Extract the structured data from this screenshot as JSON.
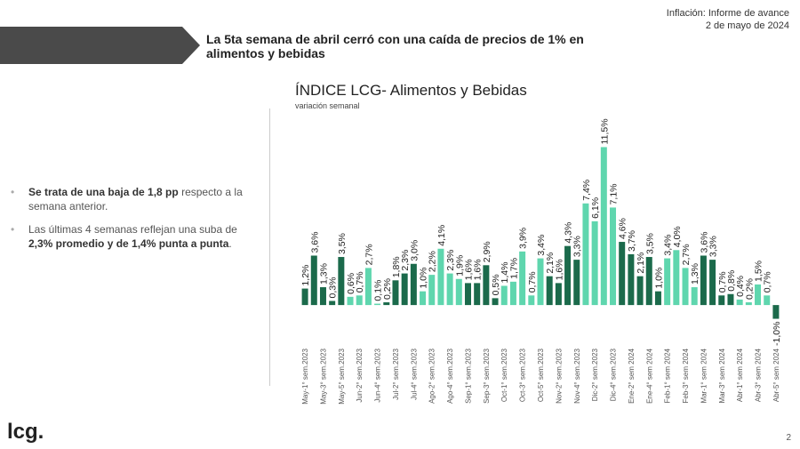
{
  "header": {
    "report": "Inflación: Informe de avance",
    "date": "2 de mayo de 2024"
  },
  "headline": "La 5ta semana de abril cerró con una caída de precios de 1% en alimentos y bebidas",
  "bullets": [
    [
      {
        "text": "Se trata de una baja de 1,8 pp",
        "bold": true
      },
      {
        "text": " respecto a la semana anterior.",
        "bold": false
      }
    ],
    [
      {
        "text": "Las últimas 4 semanas reflejan una suba de ",
        "bold": false
      },
      {
        "text": "2,3% promedio y  de 1,4% punta a punta",
        "bold": true
      },
      {
        "text": ".",
        "bold": false
      }
    ]
  ],
  "logo": "lcg.",
  "page_number": "2",
  "chart_data": {
    "type": "bar",
    "title": "ÍNDICE LCG- Alimentos y Bebidas",
    "subtitle": "variación semanal",
    "categories": [
      "May-1° sem.2023",
      null,
      "May-3° sem.2023",
      null,
      "May-5° sem.2023",
      null,
      "Jun-2° sem.2023",
      null,
      "Jun-4° sem.2023",
      null,
      "Jul-2° sem.2023",
      null,
      "Jul-4° sem.2023",
      null,
      "Ago-2° sem.2023",
      null,
      "Ago-4° sem.2023",
      null,
      "Sep-1° sem.2023",
      null,
      "Sep-3° sem.2023",
      null,
      "Oct-1° sem.2023",
      null,
      "Oct-3° sem.2023",
      null,
      "Oct-5° sem.2023",
      null,
      "Nov-2° sem.2023",
      null,
      "Nov-4° sem.2023",
      null,
      "Dic-2° sem.2023",
      null,
      "Dic-4° sem.2023",
      null,
      "Ene-2° sem 2024",
      null,
      "Ene-4° sem 2024",
      null,
      "Feb-1° sem 2024",
      null,
      "Feb-3° sem 2024",
      null,
      "Mar-1° sem 2024",
      null,
      "Mar-3° sem 2024",
      null,
      "Abr-1° sem 2024",
      null,
      "Abr-3° sem 2024",
      null,
      "Abr-5° sem 2024"
    ],
    "series": [
      {
        "values": [
          1.2,
          3.6,
          1.3,
          0.3,
          3.5,
          0.6,
          0.7,
          2.7,
          0.1,
          0.2,
          1.8,
          2.3,
          3.0,
          1.0,
          2.2,
          4.1,
          2.3,
          1.9,
          1.6,
          1.6,
          2.9,
          0.5,
          1.4,
          1.7,
          3.9,
          0.7,
          3.4,
          2.1,
          1.6,
          4.3,
          3.3,
          7.4,
          6.1,
          11.5,
          7.1,
          4.6,
          3.7,
          2.1,
          3.5,
          1.0,
          3.4,
          4.0,
          2.7,
          1.3,
          3.6,
          3.3,
          0.7,
          0.8,
          0.4,
          0.2,
          1.5,
          0.7,
          -1.0
        ],
        "value_labels": [
          "1,2%",
          "3,6%",
          "1,3%",
          "0,3%",
          "3,5%",
          "0,6%",
          "0,7%",
          "2,7%",
          "0,1%",
          "0,2%",
          "1,8%",
          "2,3%",
          "3,0%",
          "1,0%",
          "2,2%",
          "4,1%",
          "2,3%",
          "1,9%",
          "1,6%",
          "1,6%",
          "2,9%",
          "0,5%",
          "1,4%",
          "1,7%",
          "3,9%",
          "0,7%",
          "3,4%",
          "2,1%",
          "1,6%",
          "4,3%",
          "3,3%",
          "7,4%",
          "6,1%",
          "11,5%",
          "7,1%",
          "4,6%",
          "3,7%",
          "2,1%",
          "3,5%",
          "1,0%",
          "3,4%",
          "4,0%",
          "2,7%",
          "1,3%",
          "3,6%",
          "3,3%",
          "0,7%",
          "0,8%",
          "0,4%",
          "0,2%",
          "1,5%",
          "0,7%",
          "-1,0%"
        ],
        "colors": [
          "#1b6a4b",
          "#1b6a4b",
          "#1b6a4b",
          "#1b6a4b",
          "#1b6a4b",
          "#5fd6ae",
          "#5fd6ae",
          "#5fd6ae",
          "#5fd6ae",
          "#1b6a4b",
          "#1b6a4b",
          "#1b6a4b",
          "#1b6a4b",
          "#5fd6ae",
          "#5fd6ae",
          "#5fd6ae",
          "#5fd6ae",
          "#5fd6ae",
          "#1b6a4b",
          "#1b6a4b",
          "#1b6a4b",
          "#1b6a4b",
          "#5fd6ae",
          "#5fd6ae",
          "#5fd6ae",
          "#5fd6ae",
          "#5fd6ae",
          "#1b6a4b",
          "#1b6a4b",
          "#1b6a4b",
          "#1b6a4b",
          "#5fd6ae",
          "#5fd6ae",
          "#5fd6ae",
          "#5fd6ae",
          "#1b6a4b",
          "#1b6a4b",
          "#1b6a4b",
          "#1b6a4b",
          "#1b6a4b",
          "#5fd6ae",
          "#5fd6ae",
          "#5fd6ae",
          "#5fd6ae",
          "#1b6a4b",
          "#1b6a4b",
          "#1b6a4b",
          "#1b6a4b",
          "#5fd6ae",
          "#5fd6ae",
          "#5fd6ae",
          "#5fd6ae",
          "#1b6a4b"
        ]
      }
    ],
    "ylim": [
      -2,
      12.5
    ]
  }
}
